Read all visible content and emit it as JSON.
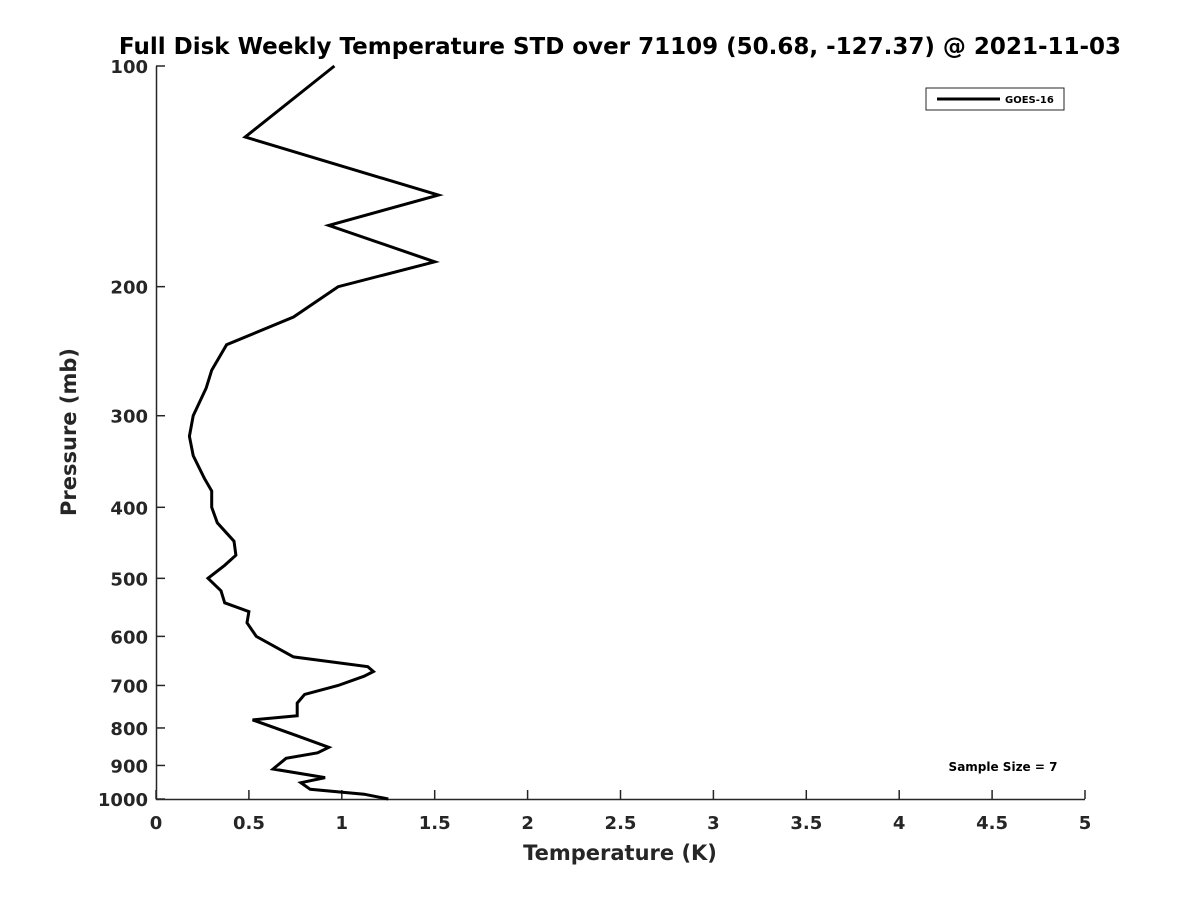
{
  "chart_data": {
    "type": "line",
    "title": "Full Disk Weekly Temperature STD over 71109 (50.68, -127.37) @ 2021-11-03",
    "xlabel": "Temperature (K)",
    "ylabel": "Pressure (mb)",
    "xlim": [
      0,
      5
    ],
    "ylim": [
      100,
      1000
    ],
    "y_scale": "log",
    "y_reversed": true,
    "xticks": [
      "0",
      "0.5",
      "1",
      "1.5",
      "2",
      "2.5",
      "3",
      "3.5",
      "4",
      "4.5",
      "5"
    ],
    "yticks": [
      "100",
      "200",
      "300",
      "400",
      "500",
      "600",
      "700",
      "800",
      "900",
      "1000"
    ],
    "grid": false,
    "legend_position": "top-right",
    "series": [
      {
        "name": "GOES-16",
        "color": "#000000",
        "points": [
          [
            0.96,
            100
          ],
          [
            0.48,
            125
          ],
          [
            1.52,
            150
          ],
          [
            0.93,
            165
          ],
          [
            1.5,
            185
          ],
          [
            0.98,
            200
          ],
          [
            0.74,
            220
          ],
          [
            0.38,
            240
          ],
          [
            0.3,
            260
          ],
          [
            0.27,
            275
          ],
          [
            0.2,
            300
          ],
          [
            0.18,
            320
          ],
          [
            0.2,
            340
          ],
          [
            0.26,
            365
          ],
          [
            0.3,
            380
          ],
          [
            0.3,
            400
          ],
          [
            0.33,
            420
          ],
          [
            0.42,
            445
          ],
          [
            0.43,
            465
          ],
          [
            0.37,
            480
          ],
          [
            0.28,
            500
          ],
          [
            0.35,
            520
          ],
          [
            0.37,
            540
          ],
          [
            0.5,
            555
          ],
          [
            0.49,
            575
          ],
          [
            0.54,
            600
          ],
          [
            0.74,
            640
          ],
          [
            1.14,
            660
          ],
          [
            1.17,
            670
          ],
          [
            1.12,
            680
          ],
          [
            0.98,
            700
          ],
          [
            0.8,
            720
          ],
          [
            0.76,
            740
          ],
          [
            0.76,
            770
          ],
          [
            0.52,
            780
          ],
          [
            0.76,
            820
          ],
          [
            0.93,
            850
          ],
          [
            0.87,
            865
          ],
          [
            0.7,
            880
          ],
          [
            0.63,
            910
          ],
          [
            0.91,
            935
          ],
          [
            0.78,
            950
          ],
          [
            0.83,
            970
          ],
          [
            1.12,
            985
          ],
          [
            1.25,
            1000
          ]
        ]
      }
    ],
    "annotation": "Sample Size = 7"
  }
}
